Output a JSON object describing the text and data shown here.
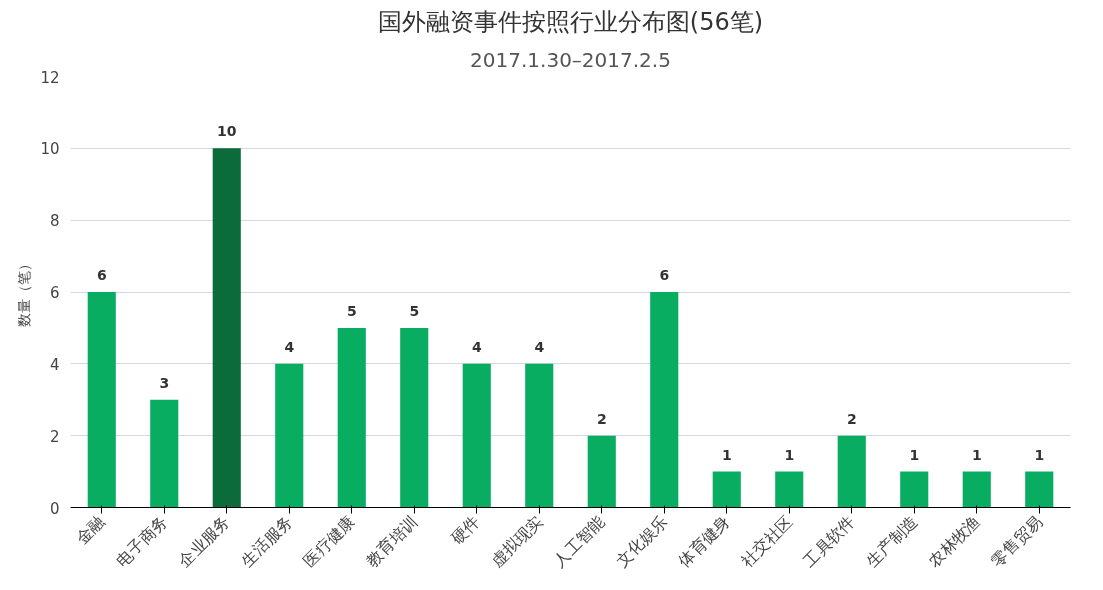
{
  "chart_data": {
    "type": "bar",
    "title": "国外融资事件按照行业分布图(56笔)",
    "subtitle": "2017.1.30–2017.2.5",
    "ylabel": "数量（笔）",
    "categories": [
      "金融",
      "电子商务",
      "企业服务",
      "生活服务",
      "医疗健康",
      "教育培训",
      "硬件",
      "虚拟现实",
      "人工智能",
      "文化娱乐",
      "体育健身",
      "社交社区",
      "工具软件",
      "生产制造",
      "农林牧渔",
      "零售贸易"
    ],
    "values": [
      6,
      3,
      10,
      4,
      5,
      5,
      4,
      4,
      2,
      6,
      1,
      1,
      2,
      1,
      1,
      1
    ],
    "colors": [
      "#08ad61",
      "#08ad61",
      "#0c6b3b",
      "#08ad61",
      "#08ad61",
      "#08ad61",
      "#08ad61",
      "#08ad61",
      "#08ad61",
      "#08ad61",
      "#08ad61",
      "#08ad61",
      "#08ad61",
      "#08ad61",
      "#08ad61",
      "#08ad61"
    ],
    "ylim": [
      0,
      12
    ],
    "yticks": [
      0,
      2,
      4,
      6,
      8,
      10,
      12
    ],
    "grid": "y",
    "data_labels": true
  }
}
